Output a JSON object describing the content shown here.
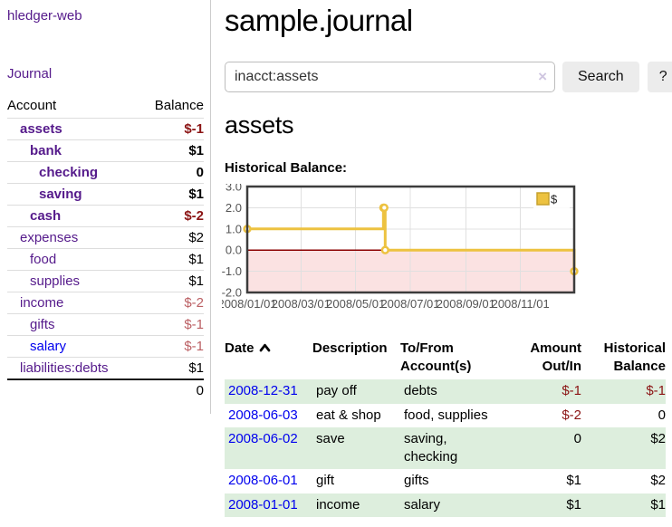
{
  "sidebar": {
    "app_title": "hledger-web",
    "nav": {
      "journal_label": "Journal"
    },
    "accounts_table": {
      "col_account": "Account",
      "col_balance": "Balance",
      "rows": [
        {
          "name": "assets",
          "depth": 1,
          "emphasis": true,
          "balance": "$-1",
          "tone": "neg-strong"
        },
        {
          "name": "bank",
          "depth": 2,
          "emphasis": true,
          "balance": "$1"
        },
        {
          "name": "checking",
          "depth": 3,
          "emphasis": true,
          "balance": "0"
        },
        {
          "name": "saving",
          "depth": 3,
          "emphasis": true,
          "balance": "$1"
        },
        {
          "name": "cash",
          "depth": 2,
          "emphasis": true,
          "balance": "$-2",
          "tone": "neg-strong"
        },
        {
          "name": "expenses",
          "depth": 1,
          "balance": "$2"
        },
        {
          "name": "food",
          "depth": 2,
          "balance": "$1"
        },
        {
          "name": "supplies",
          "depth": 2,
          "balance": "$1"
        },
        {
          "name": "income",
          "depth": 1,
          "balance": "$-2",
          "tone": "neg-weak"
        },
        {
          "name": "gifts",
          "depth": 2,
          "balance": "$-1",
          "tone": "neg-weak"
        },
        {
          "name": "salary",
          "depth": 2,
          "balance": "$-1",
          "tone": "neg-weak",
          "link": "unvisited"
        },
        {
          "name": "liabilities:debts",
          "depth": 1,
          "balance": "$1"
        }
      ],
      "total": "0"
    }
  },
  "main": {
    "title": "sample.journal",
    "search": {
      "query": "inacct:assets",
      "clear_label": "×",
      "button_label": "Search",
      "help_label": "?"
    },
    "account_heading": "assets",
    "chart_heading": "Historical Balance:"
  },
  "chart_data": {
    "type": "line",
    "step": true,
    "title": "Historical Balance:",
    "series": [
      {
        "name": "$",
        "color": "#EDC240",
        "x": [
          "2008-01-01",
          "2008-06-01",
          "2008-06-02",
          "2008-06-03",
          "2008-12-31"
        ],
        "values": [
          1,
          2,
          2,
          0,
          -1
        ]
      }
    ],
    "ylim": [
      -2.0,
      3.0
    ],
    "yticks": [
      3.0,
      2.0,
      1.0,
      0.0,
      -1.0,
      -2.0
    ],
    "xtick_labels": [
      "2008/01/01",
      "2008/03/01",
      "2008/05/01",
      "2008/07/01",
      "2008/09/01",
      "2008/11/01"
    ],
    "xtick_days": [
      0,
      60,
      121,
      182,
      244,
      305
    ],
    "x_range_days": [
      0,
      365
    ],
    "grid": true,
    "legend_position": "top-right",
    "zero_line_color": "#8b0000",
    "below_zero_fill": "#fbe2e2",
    "grid_color": "#e0e0e0",
    "border_color": "#3c3c3c",
    "tick_label_color": "#545454"
  },
  "register_table": {
    "headers": {
      "date": "Date",
      "description": "Description",
      "accounts": "To/From Account(s)",
      "amount": "Amount Out/In",
      "balance": "Historical Balance"
    },
    "sort": "date-ascending",
    "rows": [
      {
        "date": "2008-12-31",
        "description": "pay off",
        "accounts": "debts",
        "amount": "$-1",
        "amount_tone": "neg",
        "balance": "$-1",
        "balance_tone": "neg"
      },
      {
        "date": "2008-06-03",
        "description": "eat & shop",
        "accounts": "food, supplies",
        "amount": "$-2",
        "amount_tone": "neg",
        "balance": "0"
      },
      {
        "date": "2008-06-02",
        "description": "save",
        "accounts": "saving, checking",
        "amount": "0",
        "balance": "$2"
      },
      {
        "date": "2008-06-01",
        "description": "gift",
        "accounts": "gifts",
        "amount": "$1",
        "balance": "$2"
      },
      {
        "date": "2008-01-01",
        "description": "income",
        "accounts": "salary",
        "amount": "$1",
        "balance": "$1"
      }
    ]
  },
  "colors": {
    "link_visited": "#551A8B",
    "link_unvisited": "#0000EE",
    "negative_strong": "#8b1414",
    "negative_weak": "#bb5f63",
    "row_stripe_green": "#ddeedd",
    "series_yellow": "#EDC240"
  }
}
